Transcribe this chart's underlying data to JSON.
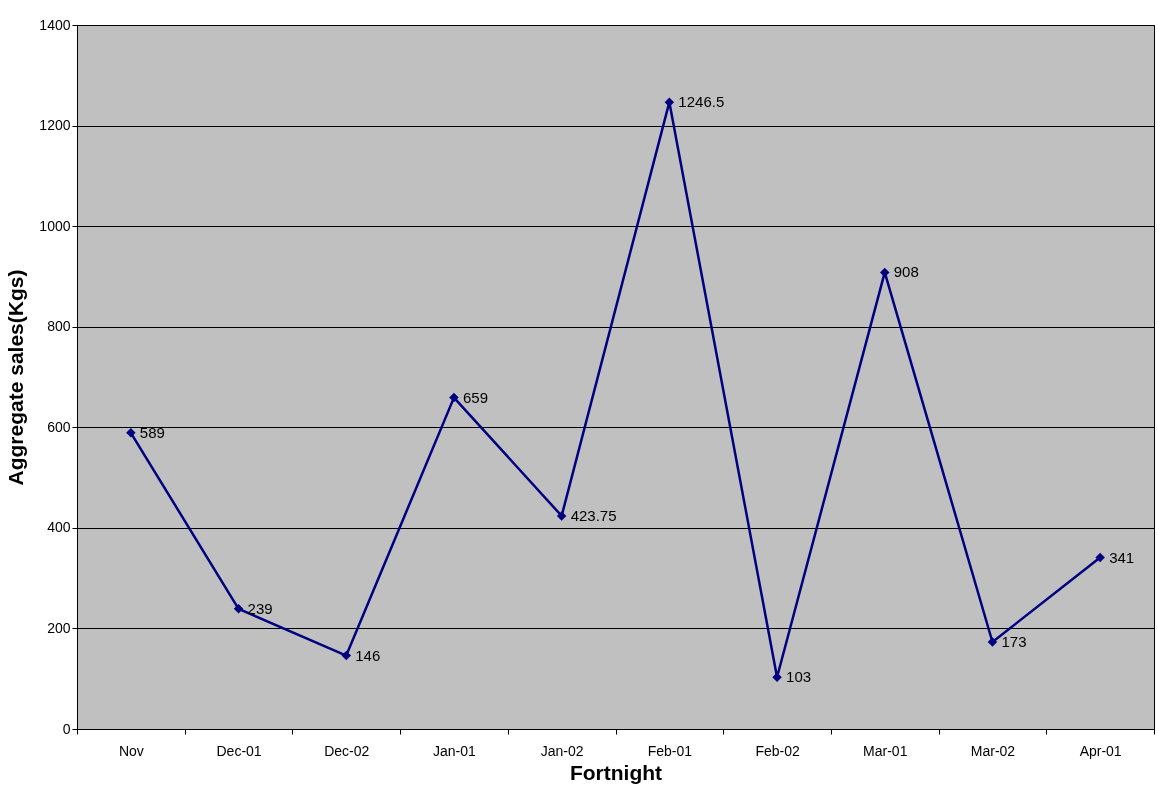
{
  "chart_data": {
    "type": "line",
    "xlabel": "Fortnight",
    "ylabel": "Aggregate sales(Kgs)",
    "categories": [
      "Nov",
      "Dec-01",
      "Dec-02",
      "Jan-01",
      "Jan-02",
      "Feb-01",
      "Feb-02",
      "Mar-01",
      "Mar-02",
      "Apr-01"
    ],
    "series": [
      {
        "color": "#000080",
        "values": [
          589,
          239,
          146,
          659,
          423.75,
          1246.5,
          103,
          908,
          173,
          341
        ]
      }
    ],
    "ylim": [
      0,
      1400
    ],
    "yticks": [
      0,
      200,
      400,
      600,
      800,
      1000,
      1200,
      1400
    ],
    "grid": "y",
    "marker": "diamond",
    "line_style": "solid",
    "data_labels": true
  }
}
